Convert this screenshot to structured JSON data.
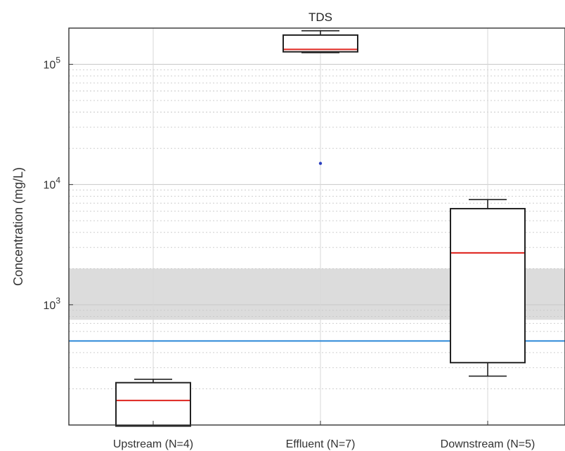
{
  "chart_data": {
    "type": "box",
    "title": "TDS",
    "xlabel": "",
    "ylabel": "Concentration (mg/L)",
    "y_scale": "log",
    "ylim": [
      100,
      200000
    ],
    "yticks": [
      {
        "value": 1000,
        "base": "10",
        "exp": "3"
      },
      {
        "value": 10000,
        "base": "10",
        "exp": "4"
      },
      {
        "value": 100000,
        "base": "10",
        "exp": "5"
      }
    ],
    "grid": true,
    "categories": [
      "Upstream (N=4)",
      "Effluent (N=7)",
      "Downstream (N=5)"
    ],
    "boxes": [
      {
        "whisker_low": 98,
        "q1": 98,
        "median": 160,
        "q3": 225,
        "whisker_high": 240,
        "outliers": []
      },
      {
        "whisker_low": 125000,
        "q1": 127000,
        "median": 133000,
        "q3": 175000,
        "whisker_high": 190000,
        "outliers": [
          15000
        ]
      },
      {
        "whisker_low": 255,
        "q1": 330,
        "median": 2700,
        "q3": 6300,
        "whisker_high": 7500,
        "outliers": []
      }
    ],
    "reference_band": {
      "low": 750,
      "high": 2000,
      "color": "#dcdcdc"
    },
    "reference_line": {
      "value": 500,
      "color": "#2b88d8"
    },
    "colors": {
      "median": "#e0302b",
      "box": "#222222",
      "outlier": "#2a3fbf",
      "grid": "#c8c8c8"
    }
  }
}
